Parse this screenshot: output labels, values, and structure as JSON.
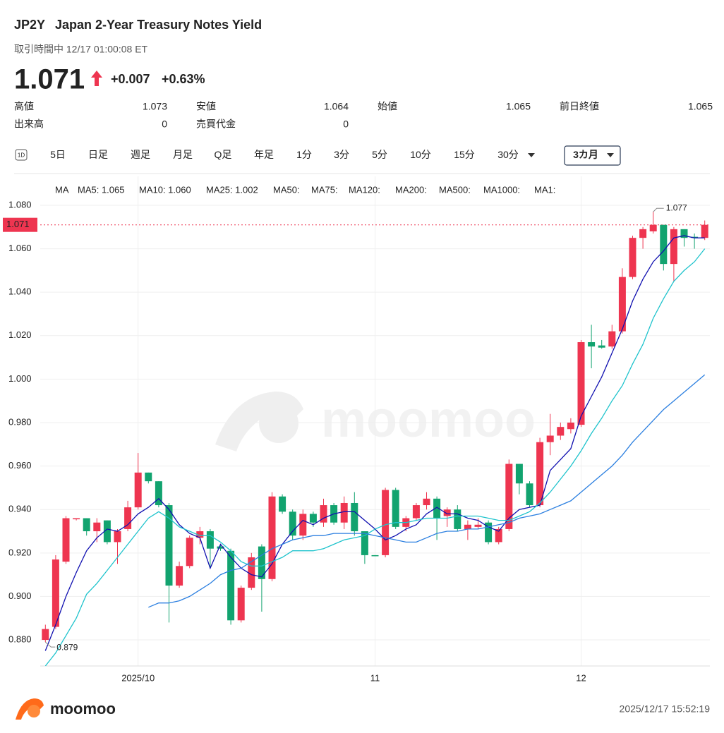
{
  "header": {
    "symbol": "JP2Y",
    "name": "Japan 2-Year Treasury Notes Yield",
    "status": "取引時間中 12/17 01:00:08 ET",
    "price": 1.071,
    "change": "+0.007",
    "change_pct": "+0.63%",
    "color": "#ee3550"
  },
  "stats": [
    {
      "label": "高値",
      "value": 1.073,
      "color": "#ee3550"
    },
    {
      "label": "安値",
      "value": 1.064,
      "color": "#12a36f"
    },
    {
      "label": "始値",
      "value": 1.065,
      "color": "#444444"
    },
    {
      "label": "前日終値",
      "value": 1.065,
      "color": "#444444"
    },
    {
      "label": "出来高",
      "value": 0,
      "color": "#222222"
    },
    {
      "label": "売買代金",
      "value": 0,
      "color": "#222222"
    }
  ],
  "tabs": [
    {
      "label": "1D",
      "icon": true
    },
    {
      "label": "5日"
    },
    {
      "label": "日足"
    },
    {
      "label": "週足"
    },
    {
      "label": "月足"
    },
    {
      "label": "Q足"
    },
    {
      "label": "年足"
    },
    {
      "label": "1分"
    },
    {
      "label": "3分"
    },
    {
      "label": "5分"
    },
    {
      "label": "10分"
    },
    {
      "label": "15分"
    },
    {
      "label": "30分",
      "dropdown": true
    },
    {
      "label": "3カ月",
      "dropdown": true,
      "selected": true
    }
  ],
  "footer": {
    "brand": "moomoo",
    "timestamp": "2025/12/17 15:52:19"
  },
  "chart_data": {
    "type": "candlestick",
    "watermark": "moomoo",
    "up_color": "#ee3550",
    "down_color": "#12a36f",
    "grid": true,
    "categories": [
      null,
      null,
      null,
      null,
      null,
      null,
      null,
      null,
      null,
      "2025/10",
      null,
      null,
      null,
      null,
      null,
      null,
      null,
      null,
      null,
      null,
      null,
      null,
      null,
      null,
      null,
      null,
      null,
      null,
      null,
      null,
      null,
      null,
      "11",
      null,
      null,
      null,
      null,
      null,
      null,
      null,
      null,
      null,
      null,
      null,
      null,
      null,
      null,
      null,
      null,
      null,
      null,
      null,
      "12",
      null,
      null,
      null,
      null,
      null,
      null,
      null,
      null,
      null,
      null,
      null,
      null
    ],
    "open": [
      0.88,
      0.886,
      0.916,
      0.9355,
      0.936,
      0.93,
      0.935,
      0.925,
      0.931,
      0.941,
      0.957,
      0.953,
      0.942,
      0.905,
      0.914,
      0.927,
      0.93,
      0.923,
      0.921,
      0.889,
      0.904,
      0.923,
      0.908,
      0.946,
      0.939,
      0.928,
      0.938,
      0.934,
      0.942,
      0.934,
      0.943,
      0.93,
      0.919,
      0.919,
      0.949,
      0.932,
      0.936,
      0.942,
      0.945,
      0.937,
      0.94,
      0.931,
      0.932,
      0.934,
      0.925,
      0.931,
      0.961,
      0.952,
      0.942,
      0.971,
      0.974,
      0.977,
      0.979,
      1.017,
      1.0155,
      1.015,
      1.022,
      1.047,
      1.065,
      1.068,
      1.071,
      1.053,
      1.069,
      1.0655,
      1.065
    ],
    "high": [
      0.887,
      0.919,
      0.937,
      0.936,
      0.936,
      0.936,
      0.935,
      0.931,
      0.944,
      0.966,
      0.957,
      0.953,
      0.943,
      0.916,
      0.928,
      0.932,
      0.931,
      0.924,
      0.922,
      0.905,
      0.92,
      0.924,
      0.948,
      0.947,
      0.94,
      0.94,
      0.939,
      0.945,
      0.943,
      0.946,
      0.948,
      0.93,
      0.919,
      0.95,
      0.95,
      0.937,
      0.943,
      0.948,
      0.946,
      0.941,
      0.942,
      0.935,
      0.936,
      0.935,
      0.932,
      0.963,
      0.961,
      0.953,
      0.973,
      0.984,
      0.98,
      0.982,
      1.018,
      1.025,
      1.018,
      1.025,
      1.051,
      1.066,
      1.07,
      1.077,
      1.071,
      1.07,
      1.069,
      1.067,
      1.073
    ],
    "low": [
      0.879,
      0.885,
      0.915,
      0.935,
      0.928,
      0.925,
      0.924,
      0.915,
      0.93,
      0.94,
      0.952,
      0.941,
      0.888,
      0.904,
      0.913,
      0.924,
      0.913,
      0.921,
      0.887,
      0.888,
      0.903,
      0.893,
      0.907,
      0.938,
      0.926,
      0.926,
      0.932,
      0.932,
      0.933,
      0.931,
      0.928,
      0.915,
      0.9185,
      0.918,
      0.931,
      0.93,
      0.935,
      0.94,
      0.926,
      0.932,
      0.93,
      0.926,
      0.931,
      0.924,
      0.924,
      0.93,
      0.947,
      0.941,
      0.941,
      0.965,
      0.972,
      0.975,
      0.978,
      1.005,
      1.014,
      1.014,
      1.021,
      1.046,
      1.06,
      1.067,
      1.05,
      1.045,
      1.061,
      1.06,
      1.064
    ],
    "close": [
      0.885,
      0.917,
      0.936,
      0.936,
      0.93,
      0.934,
      0.925,
      0.93,
      0.941,
      0.957,
      0.953,
      0.942,
      0.905,
      0.914,
      0.927,
      0.93,
      0.922,
      0.922,
      0.889,
      0.904,
      0.918,
      0.908,
      0.946,
      0.939,
      0.928,
      0.938,
      0.934,
      0.942,
      0.934,
      0.943,
      0.93,
      0.919,
      0.9185,
      0.949,
      0.932,
      0.936,
      0.942,
      0.945,
      0.936,
      0.94,
      0.931,
      0.933,
      0.933,
      0.925,
      0.931,
      0.961,
      0.952,
      0.942,
      0.971,
      0.974,
      0.978,
      0.98,
      1.017,
      1.015,
      1.0145,
      1.022,
      1.047,
      1.065,
      1.069,
      1.071,
      1.053,
      1.069,
      1.065,
      1.065,
      1.071
    ],
    "legend_title": "MA",
    "series": [
      {
        "name": "MA5: 1.065",
        "color": "#1010b0",
        "values": [
          0.875,
          0.887,
          0.9,
          0.911,
          0.921,
          0.927,
          0.931,
          0.93,
          0.933,
          0.938,
          0.941,
          0.945,
          0.94,
          0.933,
          0.929,
          0.927,
          0.913,
          0.924,
          0.918,
          0.913,
          0.91,
          0.909,
          0.915,
          0.924,
          0.93,
          0.935,
          0.933,
          0.936,
          0.938,
          0.939,
          0.939,
          0.935,
          0.931,
          0.926,
          0.928,
          0.931,
          0.933,
          0.938,
          0.941,
          0.938,
          0.938,
          0.936,
          0.935,
          0.932,
          0.93,
          0.936,
          0.94,
          0.941,
          0.942,
          0.958,
          0.963,
          0.968,
          0.983,
          0.992,
          1.001,
          1.012,
          1.023,
          1.036,
          1.046,
          1.054,
          1.059,
          1.065,
          1.066,
          1.065,
          1.065
        ]
      },
      {
        "name": "MA10: 1.060",
        "color": "#1ec3cc",
        "values": [
          0.868,
          0.874,
          0.882,
          0.89,
          0.901,
          0.906,
          0.912,
          0.918,
          0.924,
          0.93,
          0.936,
          0.939,
          0.936,
          0.932,
          0.93,
          0.928,
          0.928,
          0.925,
          0.921,
          0.916,
          0.914,
          0.914,
          0.916,
          0.918,
          0.921,
          0.921,
          0.921,
          0.922,
          0.924,
          0.926,
          0.927,
          0.928,
          0.931,
          0.933,
          0.934,
          0.934,
          0.935,
          0.936,
          0.936,
          0.936,
          0.937,
          0.937,
          0.937,
          0.936,
          0.935,
          0.935,
          0.937,
          0.939,
          0.943,
          0.948,
          0.954,
          0.96,
          0.967,
          0.975,
          0.982,
          0.99,
          0.997,
          1.007,
          1.016,
          1.028,
          1.037,
          1.045,
          1.05,
          1.054,
          1.06
        ]
      },
      {
        "name": "MA25: 1.002",
        "color": "#2b7fe0",
        "values": [
          null,
          null,
          null,
          null,
          null,
          null,
          null,
          null,
          null,
          null,
          0.895,
          0.897,
          0.897,
          0.898,
          0.9,
          0.903,
          0.906,
          0.91,
          0.912,
          0.913,
          0.916,
          0.919,
          0.922,
          0.924,
          0.926,
          0.927,
          0.928,
          0.928,
          0.929,
          0.929,
          0.929,
          0.929,
          0.928,
          0.927,
          0.926,
          0.925,
          0.925,
          0.927,
          0.929,
          0.93,
          0.93,
          0.931,
          0.931,
          0.932,
          0.933,
          0.934,
          0.936,
          0.937,
          0.938,
          0.94,
          0.942,
          0.944,
          0.948,
          0.952,
          0.956,
          0.96,
          0.965,
          0.971,
          0.976,
          0.981,
          0.986,
          0.99,
          0.994,
          0.998,
          1.002
        ]
      },
      {
        "name": "MA50:",
        "color": "#f8c4cb"
      },
      {
        "name": "MA75:",
        "color": "#b5eadf"
      },
      {
        "name": "MA120:",
        "color": "#f0667b"
      },
      {
        "name": "MA200:",
        "color": "#f5cdee"
      },
      {
        "name": "MA500:",
        "color": "#f5dfb3"
      },
      {
        "name": "MA1000:",
        "color": "#d4c5ee"
      },
      {
        "name": "MA1:",
        "color": "#d3d3d3"
      }
    ],
    "ylim": [
      0.868,
      1.0933
    ],
    "yticks": [
      {
        "value": 0.88,
        "label": "0.880"
      },
      {
        "value": 0.9,
        "label": "0.900"
      },
      {
        "value": 0.92,
        "label": "0.920"
      },
      {
        "value": 0.94,
        "label": "0.940"
      },
      {
        "value": 0.96,
        "label": "0.960"
      },
      {
        "value": 0.98,
        "label": "0.980"
      },
      {
        "value": 1.0,
        "label": "1.000"
      },
      {
        "value": 1.02,
        "label": "1.020"
      },
      {
        "value": 1.04,
        "label": "1.040"
      },
      {
        "value": 1.06,
        "label": "1.060"
      },
      {
        "value": 1.08,
        "label": "1.080"
      }
    ],
    "last_price": 1.071,
    "max_label": 1.077,
    "min_label": 0.879
  }
}
